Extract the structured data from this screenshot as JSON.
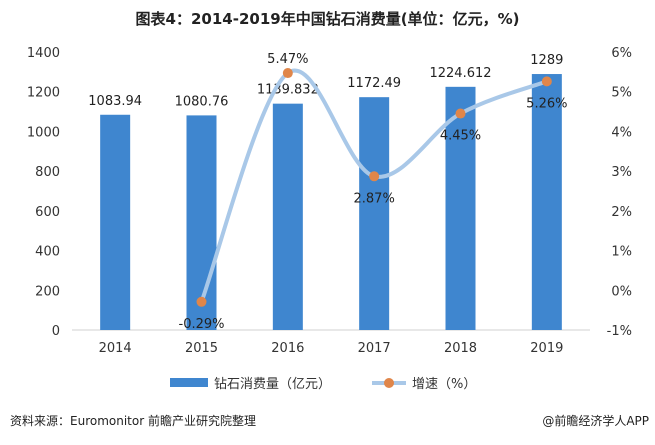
{
  "chart_data": {
    "type": "bar+line",
    "title": "图表4：2014-2019年中国钻石消费量(单位：亿元，%)",
    "categories": [
      "2014",
      "2015",
      "2016",
      "2017",
      "2018",
      "2019"
    ],
    "series": [
      {
        "name": "钻石消费量（亿元）",
        "type": "bar",
        "axis": "left",
        "values": [
          1083.94,
          1080.76,
          1139.832,
          1172.49,
          1224.612,
          1289
        ],
        "labels": [
          "1083.94",
          "1080.76",
          "1139.832",
          "1172.49",
          "1224.612",
          "1289"
        ]
      },
      {
        "name": "增速（%）",
        "type": "line",
        "axis": "right",
        "values": [
          null,
          -0.29,
          5.47,
          2.87,
          4.45,
          5.26
        ],
        "labels": [
          "",
          "-0.29%",
          "5.47%",
          "2.87%",
          "4.45%",
          "5.26%"
        ]
      }
    ],
    "left_axis": {
      "ylim": [
        0,
        1400
      ],
      "ticks": [
        "0",
        "200",
        "400",
        "600",
        "800",
        "1000",
        "1200",
        "1400"
      ]
    },
    "right_axis": {
      "ylim": [
        -1,
        6
      ],
      "ticks": [
        "-1%",
        "0%",
        "1%",
        "2%",
        "3%",
        "4%",
        "5%",
        "6%"
      ]
    },
    "legend": [
      "钻石消费量（亿元）",
      "增速（%）"
    ],
    "colors": {
      "bar": "#3f86cf",
      "line": "#a9c8e8",
      "marker": "#e0864a"
    }
  },
  "footer": {
    "source": "资料来源：Euromonitor   前瞻产业研究院整理",
    "brand": "@前瞻经济学人APP"
  }
}
